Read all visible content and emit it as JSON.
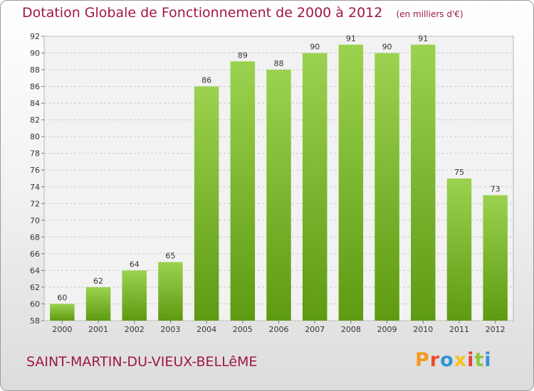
{
  "header": {
    "title": "Dotation Globale de Fonctionnement de 2000 à 2012",
    "subtitle": "(en milliers d'€)"
  },
  "footer": {
    "commune": "SAINT-MARTIN-DU-VIEUX-BELLêME",
    "brand": "Proxiti",
    "brand_colors": [
      "#f29a1f",
      "#e94f2a",
      "#2c97d6",
      "#f6c21b",
      "#e3403a",
      "#8cc63f",
      "#3a8fd6"
    ]
  },
  "colors": {
    "title": "#a0164b",
    "bar_top": "#9bd24f",
    "bar_bottom": "#5e9a12",
    "grid": "#c8c8c8"
  },
  "chart_data": {
    "type": "bar",
    "title": "Dotation Globale de Fonctionnement de 2000 à 2012",
    "subtitle": "(en milliers d'€)",
    "categories": [
      "2000",
      "2001",
      "2002",
      "2003",
      "2004",
      "2005",
      "2006",
      "2007",
      "2008",
      "2009",
      "2010",
      "2011",
      "2012"
    ],
    "values": [
      60,
      62,
      64,
      65,
      86,
      89,
      88,
      90,
      91,
      90,
      91,
      75,
      73
    ],
    "ylim": [
      58,
      92
    ],
    "yticks": [
      58,
      60,
      62,
      64,
      66,
      68,
      70,
      72,
      74,
      76,
      78,
      80,
      82,
      84,
      86,
      88,
      90,
      92
    ],
    "grid": true,
    "xlabel": "",
    "ylabel": ""
  }
}
